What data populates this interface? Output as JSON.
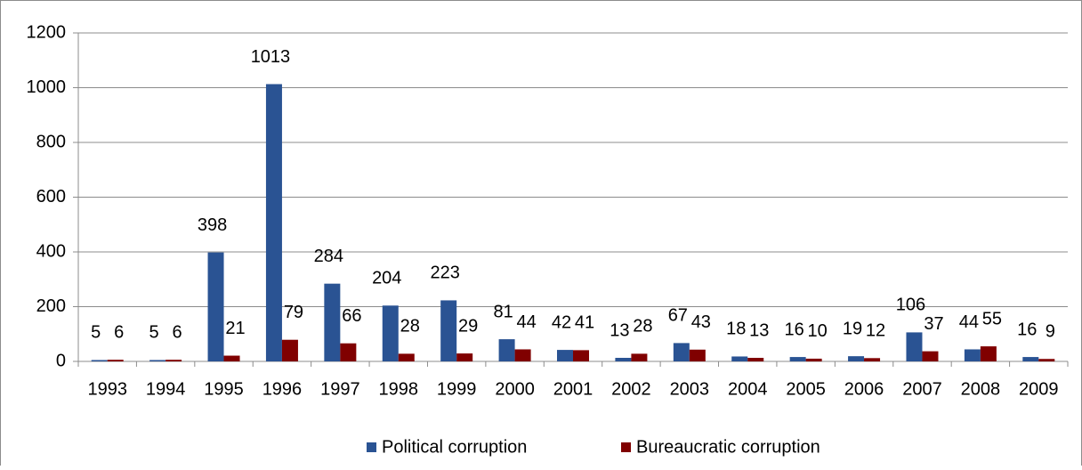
{
  "chart_data": {
    "type": "bar",
    "categories": [
      "1993",
      "1994",
      "1995",
      "1996",
      "1997",
      "1998",
      "1999",
      "2000",
      "2001",
      "2002",
      "2003",
      "2004",
      "2005",
      "2006",
      "2007",
      "2008",
      "2009"
    ],
    "series": [
      {
        "name": "Political corruption",
        "color": "#2a5393",
        "values": [
          5,
          5,
          398,
          1013,
          284,
          204,
          223,
          81,
          42,
          13,
          67,
          18,
          16,
          19,
          106,
          44,
          16
        ]
      },
      {
        "name": "Bureaucratic corruption",
        "color": "#800000",
        "values": [
          6,
          6,
          21,
          79,
          66,
          28,
          29,
          44,
          41,
          28,
          43,
          13,
          10,
          12,
          37,
          55,
          9
        ]
      }
    ],
    "ylim": [
      0,
      1200
    ],
    "yticks": [
      0,
      200,
      400,
      600,
      800,
      1000,
      1200
    ],
    "grid": true,
    "legend": "bottom"
  }
}
